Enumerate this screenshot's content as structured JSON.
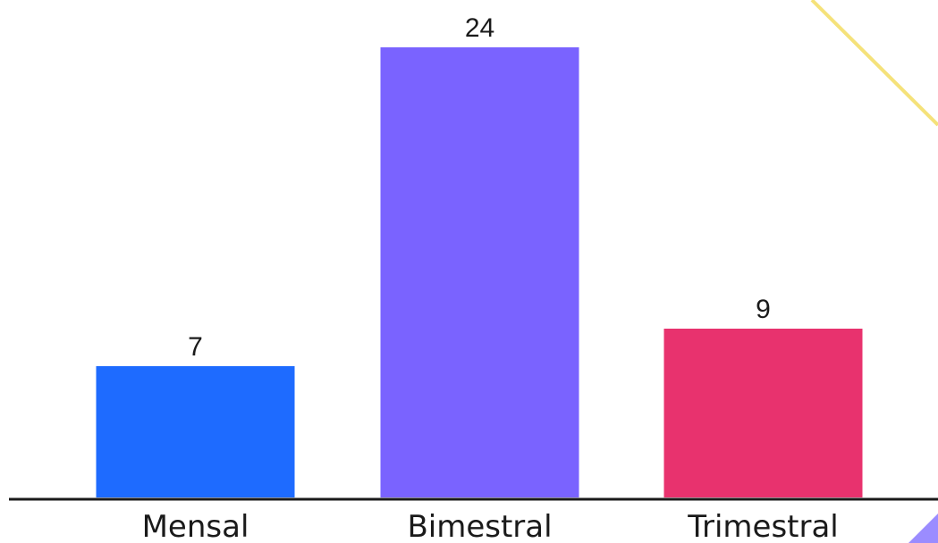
{
  "chart_data": {
    "type": "bar",
    "categories": [
      "Mensal",
      "Bimestral",
      "Trimestral"
    ],
    "values": [
      7,
      24,
      9
    ],
    "colors": [
      "#1e6bff",
      "#7a63ff",
      "#e8326e"
    ],
    "title": "",
    "xlabel": "",
    "ylabel": "",
    "ylim": [
      0,
      24
    ],
    "grid": false,
    "data_labels": true
  },
  "decoration": {
    "top_right_line_color": "#f5e27a",
    "bottom_right_triangle_color": "#9b8cff"
  }
}
